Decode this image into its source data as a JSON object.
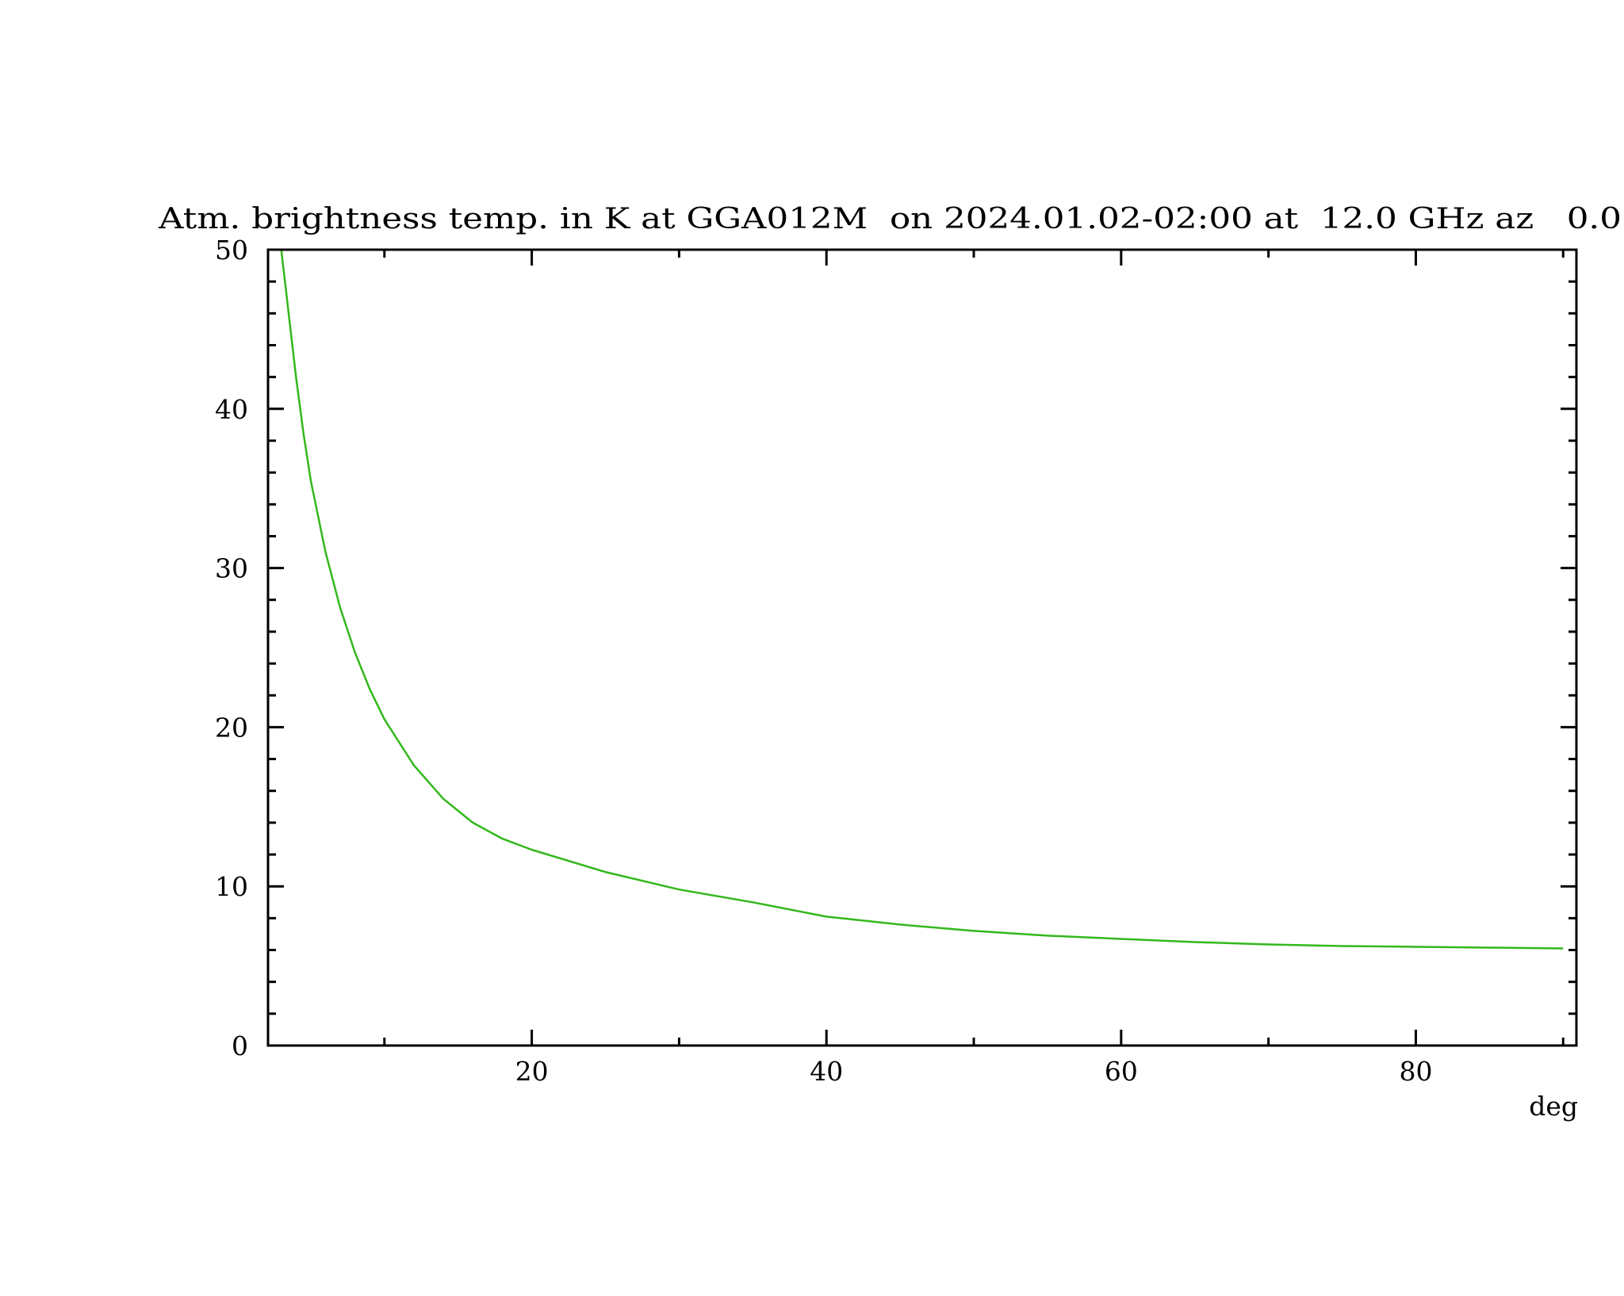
{
  "chart_data": {
    "type": "line",
    "title": "Atm. brightness temp. in K at GGA012M  on 2024.01.02-02:00 at  12.0 GHz az   0.0",
    "xlabel": "deg",
    "ylabel": "",
    "xlim": [
      2.1,
      90.9
    ],
    "ylim": [
      0,
      50
    ],
    "x_ticks": [
      20,
      40,
      60,
      80
    ],
    "x_minor_step": 10,
    "y_ticks": [
      0,
      10,
      20,
      30,
      40,
      50
    ],
    "y_minor_step": 2,
    "grid": false,
    "series": [
      {
        "color": "#33b81c",
        "x": [
          3,
          3.5,
          4,
          4.5,
          5,
          6,
          7,
          8,
          9,
          10,
          12,
          14,
          16,
          18,
          20,
          25,
          30,
          35,
          40,
          45,
          50,
          55,
          60,
          65,
          70,
          75,
          80,
          85,
          90
        ],
        "y": [
          50,
          46,
          42,
          38.5,
          35.5,
          31,
          27.5,
          24.7,
          22.4,
          20.5,
          17.6,
          15.5,
          14.0,
          13.0,
          12.3,
          10.9,
          9.8,
          9.0,
          8.1,
          7.6,
          7.2,
          6.9,
          6.7,
          6.5,
          6.35,
          6.25,
          6.2,
          6.15,
          6.1
        ]
      }
    ]
  }
}
